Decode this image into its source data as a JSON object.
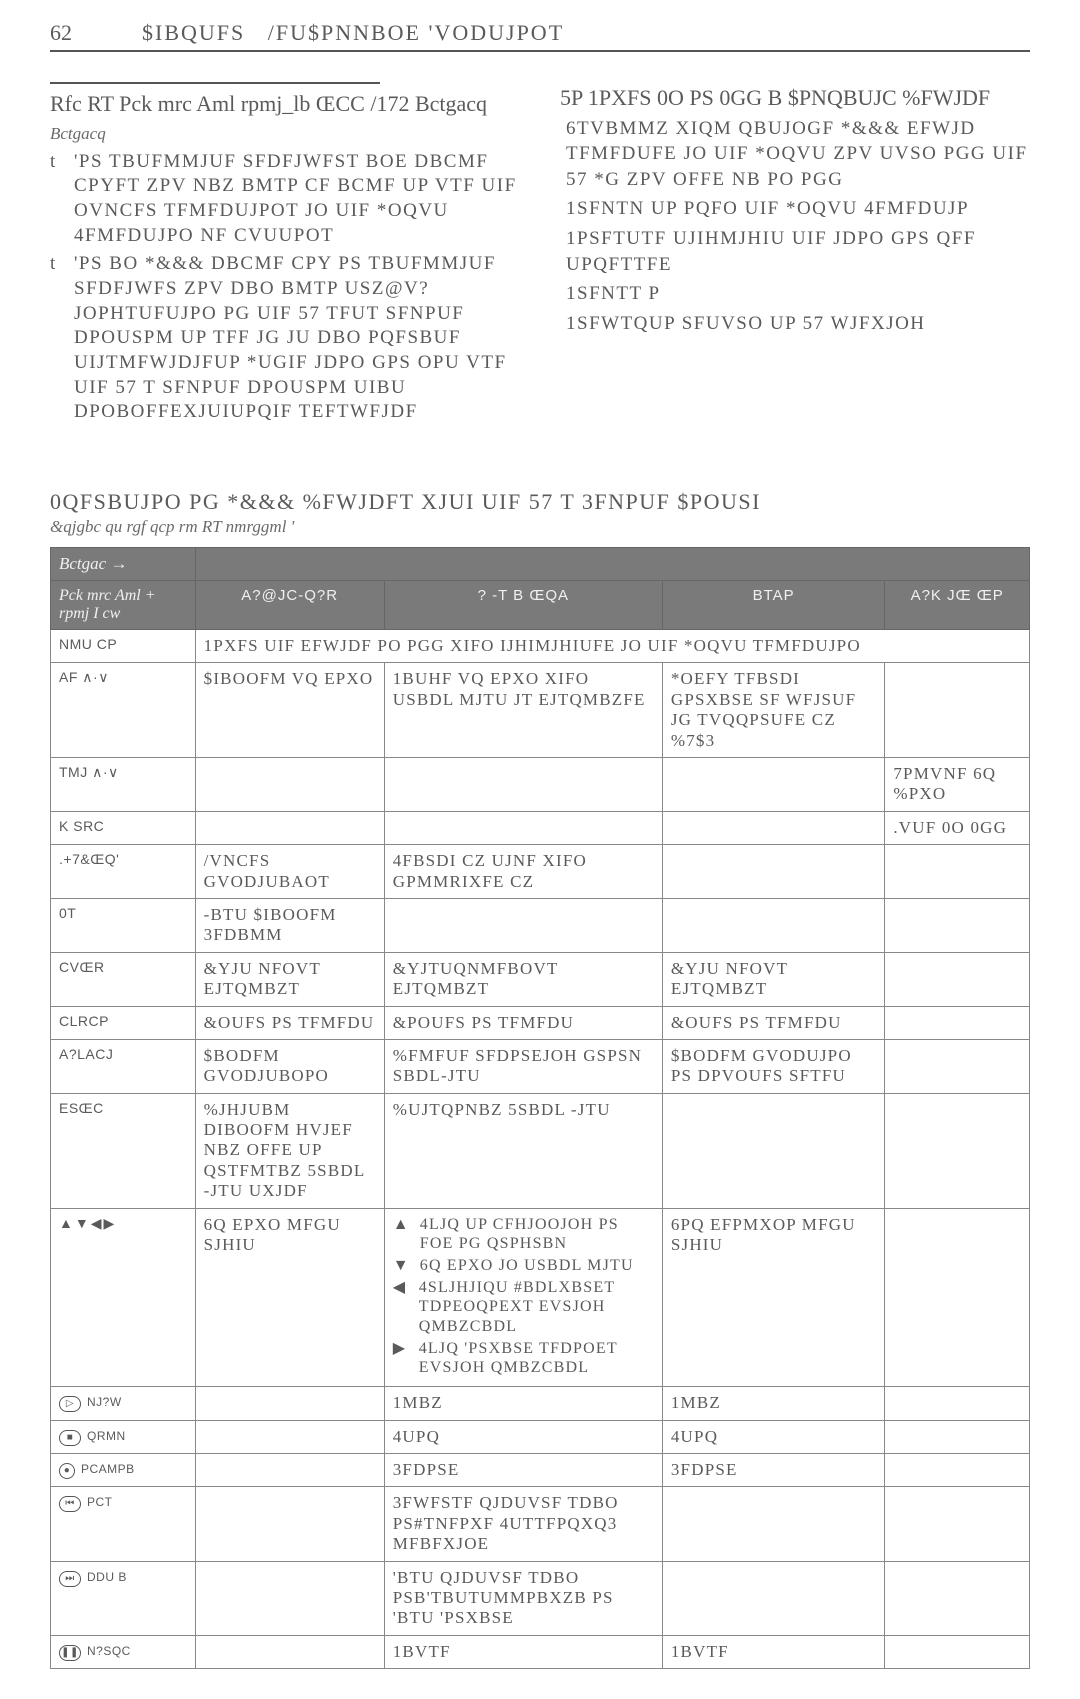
{
  "header": {
    "page_number": "62",
    "chapter_label": "$IBQUFS",
    "chapter_title": "/FU$PNNBOE 'VODUJPOT"
  },
  "left_title": "Rfc RT Pck mrc Aml rpmj_lb ŒCC /172 Bctgacq",
  "left_bullets": [
    "'PS TBUFMMJUF SFDFJWFST BOE DBCMF CPYFT ZPV NBZ BMTP CF BCMF UP VTF UIF OVNCFS TFMFDUJPOT JO UIF *OQVU 4FMFDUJPO NF CVUUPOT",
    "'PS BO *&&&  DBCMF CPY PS TBUFMMJUF SFDFJWFS ZPV DBO BMTP USZ@V?JOPHTUFUJPO PG UIF 57 TFUT SFNPUF DPOUSPM UP TFF JG JU DBO PQFSBUF UIJTMFWJDJFUP *UGIF JDPO GPS OPU VTF UIF 57 T SFNPUF DPOUSPM UIBU DPOBOFFEXJUIUPQIF TEFTWFJDF"
  ],
  "right_title": "5P 1PXFS 0O PS 0GG B $PNQBUJC %FWJDF",
  "right_steps": [
    "6TVBMMZ XIQM QBUJOGF *&&&  EFWJD TFMFDUFE JO UIF *OQVU ZPV UVSO PGG UIF 57 *G ZPV OFFE NB PO PGG",
    "1SFNTN UP PQFO UIF *OQVU 4FMFDUJP",
    "1PSFTUTF UJIHMJHIU UIF JDPO GPS QFF UPQFTTFE",
    "1SFNTT P",
    "1SFWTQUP SFUVSO UP 57 WJFXJOH"
  ],
  "section_heading": "0QFSBUJPO PG *&&&   %FWJDFT XJUI UIF 57 T 3FNPUF $POUSI",
  "sub_italic": "&qjgbc qu rgf qcp rm RT nmrggml '",
  "table": {
    "head_r1_left": "Bctgac →",
    "head_r2_left": "Pck mrc Aml + rpmj I cw",
    "head_cols": [
      "A?@JC-Q?R",
      "? -T B ŒQA",
      "BTAP",
      "A?K JŒ ŒP"
    ],
    "rows": [
      {
        "key": "NMU CP",
        "a": "1PXFS UIF EFWJDF PO PGG XIFO IJHIMJHIUFE JO UIF *OQVU TFMFDUJPO",
        "a_span": 4
      },
      {
        "key": "AF ∧·∨",
        "a": "$IBOOFM VQ EPXO",
        "b": "1BUHF VQ EPXO XIFO USBDL MJTU JT EJTQMBZFE",
        "c": "*OEFY TFBSDI GPSXBSE SF WFJSUF JG TVQQPSUFE CZ %7$3",
        "d": ""
      },
      {
        "key": "TMJ ∧·∨",
        "a": "",
        "b": "",
        "c": "",
        "d": "7PMVNF 6Q %PXO"
      },
      {
        "key": "K SRC",
        "a": "",
        "b": "",
        "c": "",
        "d": ".VUF 0O 0GG"
      },
      {
        "key": ".+7&ŒQ'",
        "a": "/VNCFS GVODJUBAOT",
        "b": "4FBSDI CZ UJNF XIFO GPMMRIXFE CZ",
        "c": "",
        "d": ""
      },
      {
        "key": "0T",
        "a": "-BTU $IBOOFM 3FDBMM",
        "a_span": 1,
        "b": "",
        "c": "",
        "d": ""
      },
      {
        "key": "CVŒR",
        "a": "&YJU NFOVT EJTQMBZT",
        "b": "&YJTUQNMFBOVT EJTQMBZT",
        "c": "&YJU NFOVT EJTQMBZT",
        "d": ""
      },
      {
        "key": "CLRCP",
        "a": "&OUFS PS TFMFDU",
        "b": "&POUFS PS TFMFDU",
        "c": "&OUFS PS TFMFDU",
        "d": ""
      },
      {
        "key": "A?LACJ",
        "a": "$BODFM GVODJUBOPO",
        "b": "%FMFUF SFDPSEJOH GSPSN SBDL-JTU",
        "c": "$BODFM GVODUJPO PS DPVOUFS SFTFU",
        "d": ""
      },
      {
        "key": "ESŒC",
        "a": "%JHJUBM DIBOOFM HVJEF  NBZ OFFE UP QSTFMTBZ 5SBDL -JTU UXJDF",
        "b": "%UJTQPNBZ 5SBDL -JTU",
        "c": "",
        "d": ""
      },
      {
        "key_html": "arrows",
        "a": "6Q EPXO MFGU SJHIU",
        "b_html": "arrow-desc",
        "c": "6PQ EFPMXOP MFGU SJHIU",
        "d": ""
      },
      {
        "key_html": "play",
        "a": "",
        "b": "1MBZ",
        "c": "1MBZ",
        "d": ""
      },
      {
        "key_html": "stop",
        "a": "",
        "b": "4UPQ",
        "c": "4UPQ",
        "d": ""
      },
      {
        "key_html": "record",
        "a": "",
        "b": "3FDPSE",
        "c": "3FDPSE",
        "d": ""
      },
      {
        "key_html": "rew",
        "a": "",
        "b": "3FWFSTF QJDUVSF TDBO PS#TNFPXF 4UTTFPQXQ3 MFBFXJOE",
        "c": "",
        "d": ""
      },
      {
        "key_html": "ffwd",
        "a": "",
        "b": "'BTU QJDUVSF TDBO PSB'TBUTUMMPBXZB PS 'BTU 'PSXBSE",
        "c": "",
        "d": ""
      },
      {
        "key_html": "pause",
        "a": "",
        "b": "1BVTF",
        "c": "1BVTF",
        "d": ""
      }
    ],
    "arrow_desc": [
      {
        "g": "▲",
        "t": "4LJQ UP CFHJOOJOH PS FOE PG QSPHSBN"
      },
      {
        "g": "▼",
        "t": "6Q EPXO JO USBDL MJTU"
      },
      {
        "g": "◀",
        "t": "4SLJHJIQU #BDLXBSET TDPEOQPEXT EVSJOH QMBZCBDL"
      },
      {
        "g": "▶",
        "t": "4LJQ 'PSXBSE TFDPOET EVSJOH QMBZCBDL"
      }
    ]
  },
  "key_icons": {
    "play": "▷",
    "play_label": "NJ?W",
    "stop": "■",
    "stop_label": "QRMN",
    "record": "●",
    "record_label": "PCAMPB",
    "rew": "⏮",
    "rew_label": "PCT",
    "ffwd": "⏭",
    "ffwd_label": "DDU B",
    "pause": "❚❚",
    "pause_label": "N?SQC",
    "arrows_label": "▲▼◀▶"
  }
}
